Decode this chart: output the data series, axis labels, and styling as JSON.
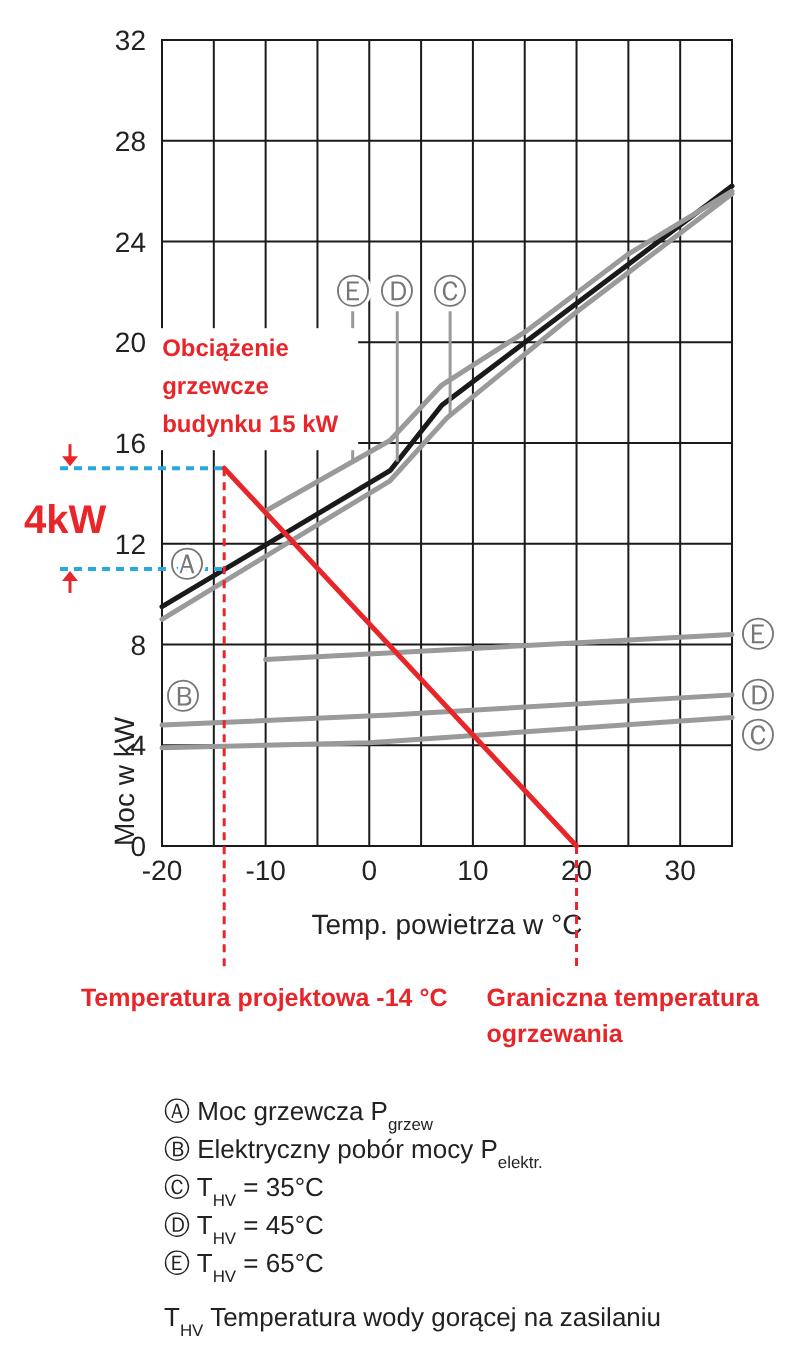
{
  "chart_data": {
    "type": "line",
    "xlabel": "Temp. powietrza w °C",
    "ylabel": "Moc w kW",
    "xlim": [
      -20,
      35
    ],
    "ylim": [
      0,
      32
    ],
    "xticks": [
      -20,
      {
        "value": -15,
        "label": null
      },
      -10,
      {
        "value": -5,
        "label": null
      },
      0,
      {
        "value": 5,
        "label": null
      },
      10,
      {
        "value": 15,
        "label": null
      },
      20,
      {
        "value": 25,
        "label": null
      },
      30,
      {
        "value": 35,
        "label": null
      }
    ],
    "yticks": [
      0,
      4,
      8,
      12,
      16,
      20,
      24,
      28,
      32
    ],
    "grid": true,
    "series": [
      {
        "color": "#9a9a9a",
        "x": [
          -20,
          2,
          7.5,
          20,
          35
        ],
        "values": [
          9.0,
          14.5,
          17.0,
          21.2,
          25.9
        ]
      },
      {
        "color": "#1a1a1a",
        "x": [
          -20,
          2,
          7,
          35
        ],
        "values": [
          9.5,
          14.9,
          17.5,
          26.2
        ]
      },
      {
        "color": "#9a9a9a",
        "x": [
          -10,
          2,
          7,
          15,
          25,
          35
        ],
        "values": [
          13.3,
          16.1,
          18.3,
          20.4,
          23.5,
          26.0
        ]
      },
      {
        "color": "#9a9a9a",
        "x": [
          -10,
          35
        ],
        "values": [
          7.4,
          8.4
        ]
      },
      {
        "color": "#9a9a9a",
        "x": [
          -20,
          2,
          35
        ],
        "values": [
          4.8,
          5.2,
          6.0
        ]
      },
      {
        "color": "#9a9a9a",
        "x": [
          -20,
          0,
          35
        ],
        "values": [
          3.9,
          4.1,
          5.1
        ]
      },
      {
        "color": "#e8262a",
        "x": [
          -14,
          20
        ],
        "values": [
          15,
          0
        ]
      }
    ],
    "ref_lines": [
      {
        "axis": "x",
        "value": -14,
        "label": "Temperatura projektowa -14 °C",
        "color": "#e8262a",
        "line_style": "dashed"
      },
      {
        "axis": "x",
        "value": 20,
        "label": "Graniczna temperatura ogrzewania",
        "color": "#e8262a",
        "line_style": "dashed"
      },
      {
        "axis": "y",
        "value": 15,
        "color": "#29a8e0",
        "line_style": "dashed"
      },
      {
        "axis": "y",
        "value": 11,
        "color": "#29a8e0",
        "line_style": "dashed"
      }
    ],
    "annotations": [
      {
        "text": "Ⓐ",
        "x": -17.6,
        "y": 10.1
      },
      {
        "text": "Ⓑ",
        "x": -18,
        "y": 4.84
      },
      {
        "text": "Ⓔ",
        "x": -1.6,
        "y": 15.3
      },
      {
        "text": "Ⓓ",
        "x": 2.7,
        "y": 15.26
      },
      {
        "text": "Ⓒ",
        "x": 7.8,
        "y": 17.1
      },
      {
        "text": "Ⓔ",
        "x": 35,
        "y": 8.4
      },
      {
        "text": "Ⓓ",
        "x": 35,
        "y": 6.0
      },
      {
        "text": "Ⓒ",
        "x": 35,
        "y": 5.1
      },
      {
        "text": "Obciążenie grzewcze budynku 15 kW",
        "x": -14,
        "y": 15
      },
      "4kW",
      "Ⓐ Moc grzewcza P$_{grzew}$",
      "Ⓑ Elektryczny pobór mocy P$_{elektr.}$",
      "Ⓒ T$_{HV}$ = 35°C",
      "Ⓓ T$_{HV}$ = 45°C",
      "Ⓔ T$_{HV}$ = 65°C",
      "T$_{HV}$ Temperatura wody gorącej na zasilaniu"
    ]
  }
}
